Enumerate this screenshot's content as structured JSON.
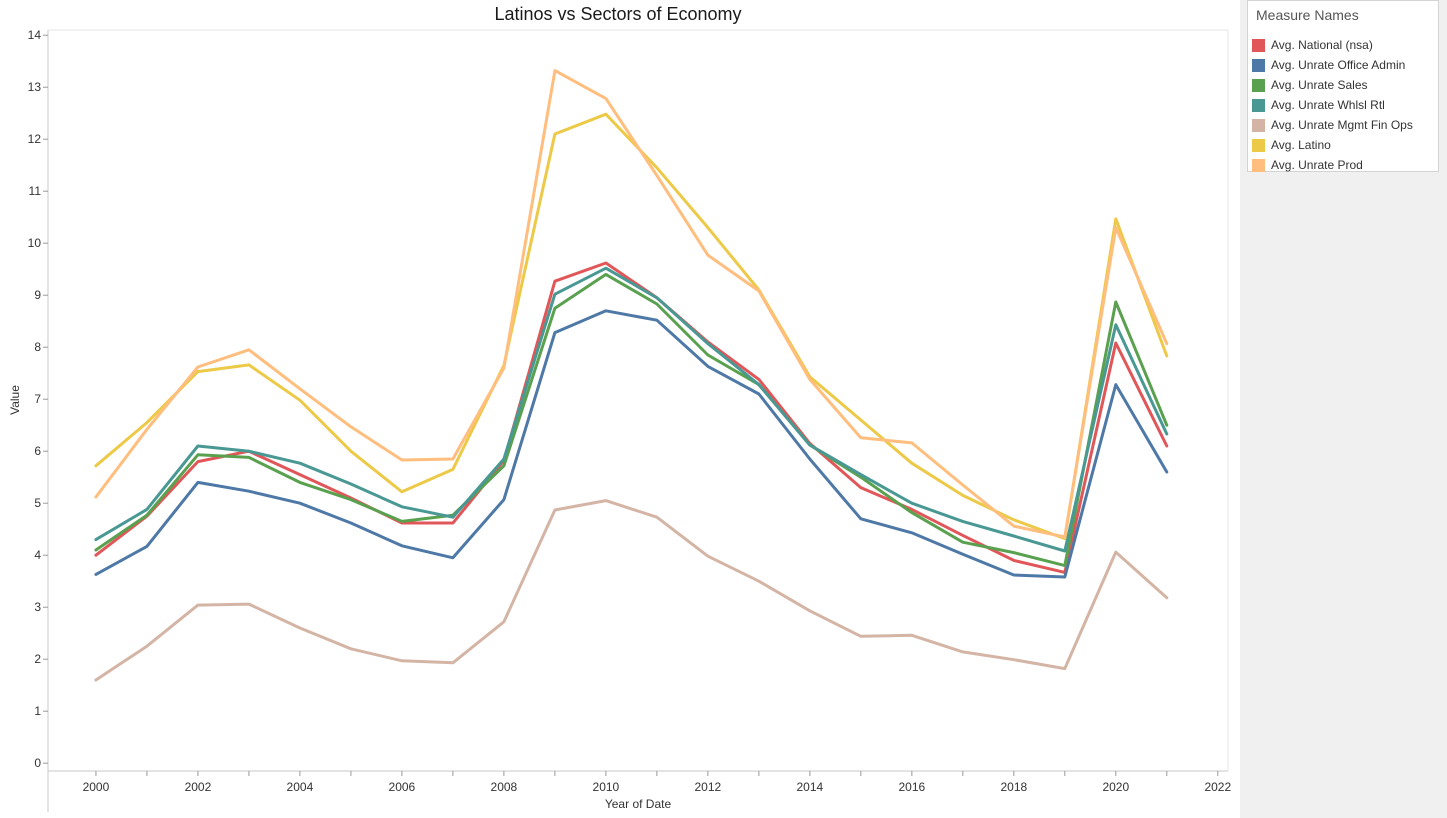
{
  "chart_data": {
    "type": "line",
    "title": "Latinos vs Sectors of Economy",
    "xlabel": "Year of Date",
    "ylabel": "Value",
    "xlim": [
      1999,
      2022
    ],
    "ylim": [
      0,
      14
    ],
    "x_ticks": [
      "2000",
      "2002",
      "2004",
      "2006",
      "2008",
      "2010",
      "2012",
      "2014",
      "2016",
      "2018",
      "2020",
      "2022"
    ],
    "y_ticks": [
      "0",
      "1",
      "2",
      "3",
      "4",
      "5",
      "6",
      "7",
      "8",
      "9",
      "10",
      "11",
      "12",
      "13",
      "14"
    ],
    "legend_title": "Measure Names",
    "legend_position": "right",
    "x": [
      2000,
      2001,
      2002,
      2003,
      2004,
      2005,
      2006,
      2007,
      2008,
      2009,
      2010,
      2011,
      2012,
      2013,
      2014,
      2015,
      2016,
      2017,
      2018,
      2019,
      2020,
      2021
    ],
    "series": [
      {
        "name": "Avg. National (nsa)",
        "color": "#e15759",
        "values": [
          4.0,
          4.75,
          5.8,
          6.0,
          5.55,
          5.1,
          4.62,
          4.62,
          5.82,
          9.27,
          9.62,
          8.95,
          8.1,
          7.38,
          6.15,
          5.3,
          4.88,
          4.38,
          3.9,
          3.67,
          8.08,
          6.1
        ]
      },
      {
        "name": "Avg. Unrate Office Admin",
        "color": "#4e79a7",
        "values": [
          3.63,
          4.17,
          5.4,
          5.23,
          5.0,
          4.62,
          4.18,
          3.95,
          5.07,
          8.28,
          8.7,
          8.52,
          7.63,
          7.1,
          5.85,
          4.7,
          4.43,
          4.02,
          3.62,
          3.58,
          7.28,
          5.6
        ]
      },
      {
        "name": "Avg. Unrate Sales",
        "color": "#59a14f",
        "values": [
          4.1,
          4.77,
          5.93,
          5.88,
          5.4,
          5.07,
          4.65,
          4.77,
          5.72,
          8.75,
          9.4,
          8.83,
          7.85,
          7.28,
          6.12,
          5.5,
          4.82,
          4.25,
          4.05,
          3.8,
          8.87,
          6.5
        ]
      },
      {
        "name": "Avg. Unrate Whlsl Rtl",
        "color": "#499894",
        "values": [
          4.3,
          4.88,
          6.1,
          6.0,
          5.77,
          5.37,
          4.93,
          4.73,
          5.85,
          9.02,
          9.52,
          8.95,
          8.07,
          7.28,
          6.12,
          5.55,
          5.0,
          4.65,
          4.37,
          4.08,
          8.43,
          6.33
        ]
      },
      {
        "name": "Avg. Unrate Mgmt Fin Ops",
        "color": "#d4b5a5",
        "values": [
          1.6,
          2.25,
          3.04,
          3.06,
          2.6,
          2.2,
          1.97,
          1.93,
          2.72,
          4.87,
          5.05,
          4.73,
          3.98,
          3.5,
          2.93,
          2.44,
          2.46,
          2.14,
          1.99,
          1.82,
          4.06,
          3.18
        ]
      },
      {
        "name": "Avg. Latino",
        "color": "#edc948",
        "values": [
          5.72,
          6.55,
          7.53,
          7.66,
          6.98,
          6.0,
          5.22,
          5.65,
          7.65,
          12.1,
          12.48,
          11.45,
          10.3,
          9.1,
          7.43,
          6.6,
          5.77,
          5.15,
          4.68,
          4.32,
          10.47,
          7.83
        ]
      },
      {
        "name": "Avg. Unrate Prod",
        "color": "#ffbe7d",
        "values": [
          5.12,
          6.42,
          7.62,
          7.95,
          7.2,
          6.47,
          5.83,
          5.85,
          7.6,
          13.32,
          12.78,
          11.3,
          9.77,
          9.08,
          7.38,
          6.26,
          6.16,
          5.35,
          4.56,
          4.35,
          10.3,
          8.07
        ]
      }
    ]
  }
}
